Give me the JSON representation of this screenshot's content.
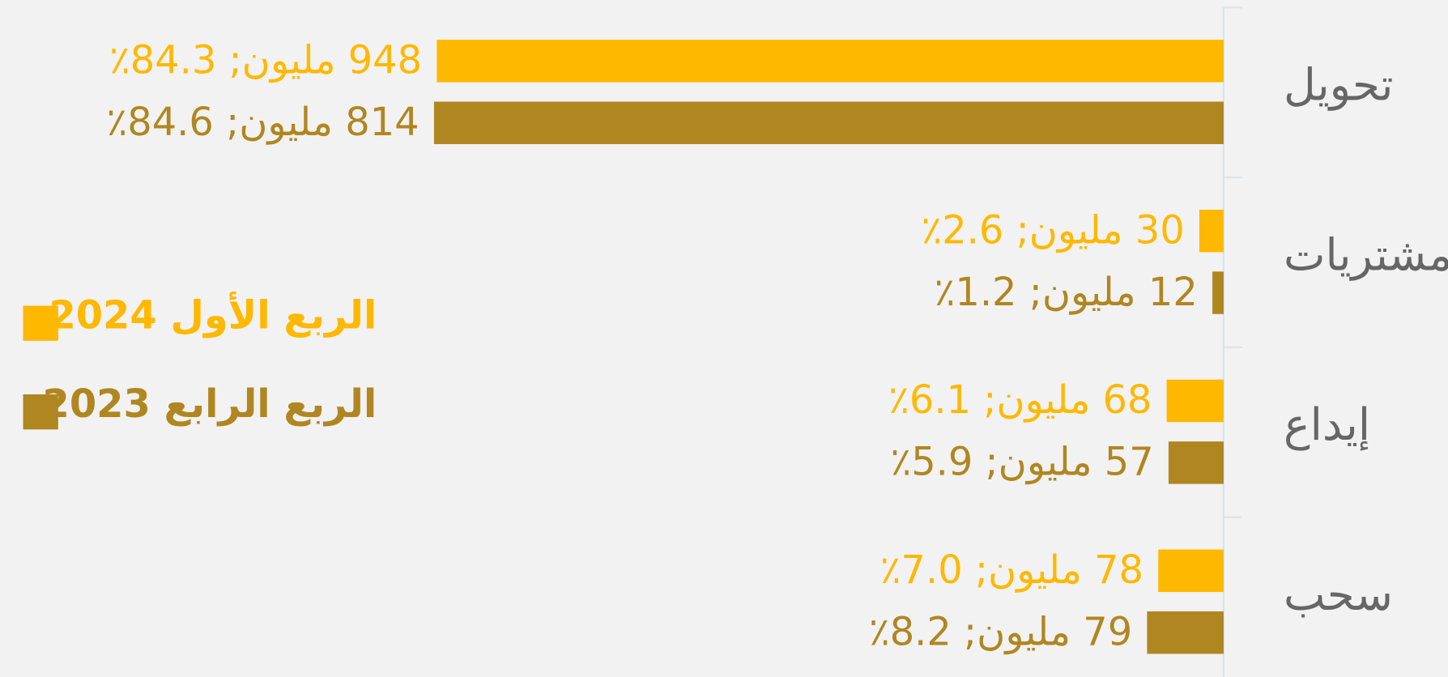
{
  "chart_data": {
    "type": "bar",
    "orientation": "horizontal",
    "categories": [
      "تحويل",
      "مشتريات",
      "إيداع",
      "سحب"
    ],
    "series": [
      {
        "name": "الربع الأول 2024",
        "color": "#ffb800",
        "values": [
          84.3,
          2.6,
          6.1,
          7.0
        ],
        "value_labels": [
          "948 مليون; 84.3٪",
          "30 مليون; 2.6٪",
          "68 مليون; 6.1٪",
          "78 مليون; 7.0٪"
        ]
      },
      {
        "name": "الربع الرابع 2023",
        "color": "#b08620",
        "values": [
          84.6,
          1.2,
          5.9,
          8.2
        ],
        "value_labels": [
          "814 مليون; 84.6٪",
          "12 مليون; 1.2٪",
          "57 مليون; 5.9٪",
          "79 مليون; 8.2٪"
        ]
      }
    ],
    "legend": "left"
  }
}
